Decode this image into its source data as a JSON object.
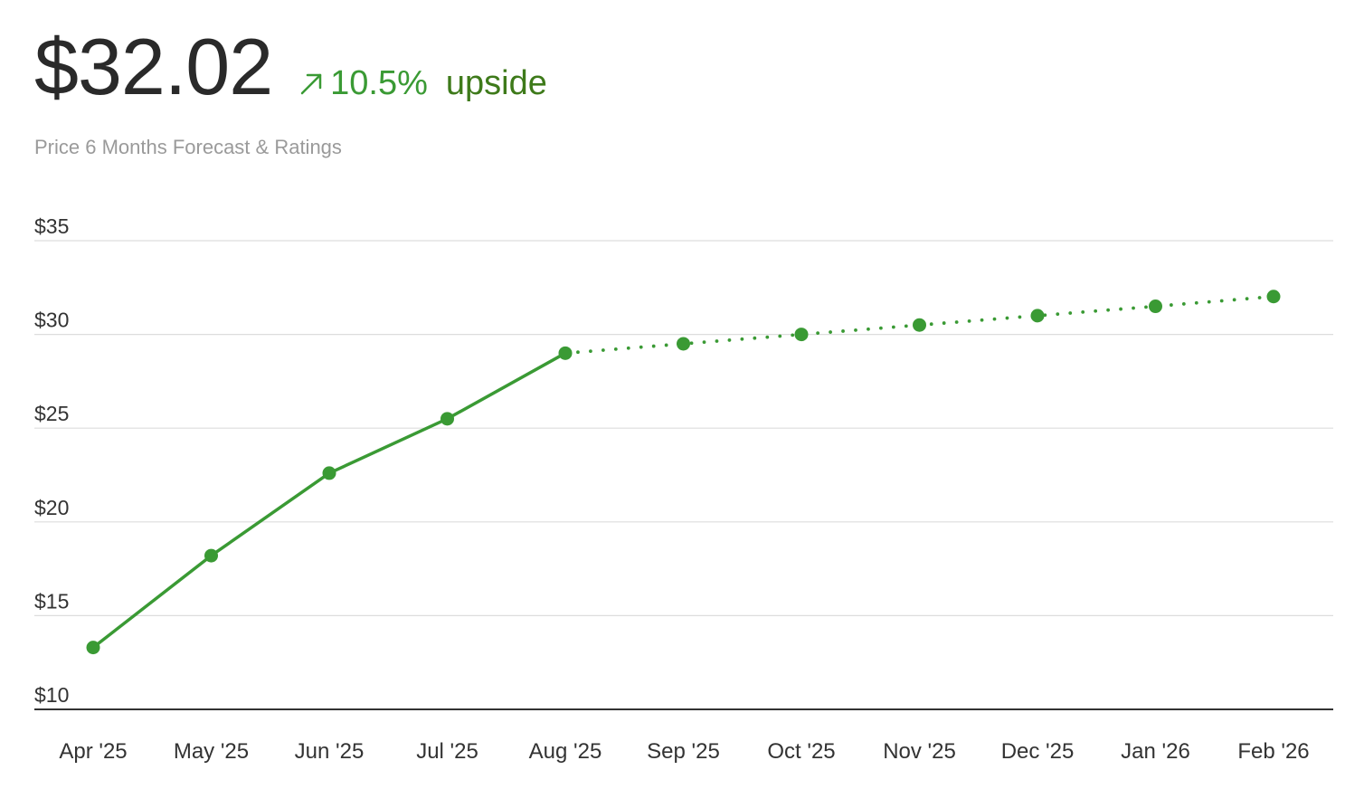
{
  "header": {
    "price": "$32.02",
    "change_pct": "10.5%",
    "change_direction": "upside",
    "subtitle": "Price 6 Months Forecast & Ratings"
  },
  "colors": {
    "line": "#3a9a34",
    "positive_text": "#3a9a34",
    "direction_text": "#3e7a1a",
    "grid": "#dddddd",
    "axis": "#333333"
  },
  "icons": {
    "change": "arrow-up-right-icon"
  },
  "chart_data": {
    "type": "line",
    "x": [
      "Apr '25",
      "May '25",
      "Jun '25",
      "Jul '25",
      "Aug '25",
      "Sep '25",
      "Oct '25",
      "Nov '25",
      "Dec '25",
      "Jan '26",
      "Feb '26"
    ],
    "series": [
      {
        "style": "solid",
        "points": [
          {
            "x": "Apr '25",
            "y": 13.3
          },
          {
            "x": "May '25",
            "y": 18.2
          },
          {
            "x": "Jun '25",
            "y": 22.6
          },
          {
            "x": "Jul '25",
            "y": 25.5
          },
          {
            "x": "Aug '25",
            "y": 29.0
          }
        ]
      },
      {
        "style": "dotted",
        "points": [
          {
            "x": "Aug '25",
            "y": 29.0
          },
          {
            "x": "Sep '25",
            "y": 29.5
          },
          {
            "x": "Oct '25",
            "y": 30.0
          },
          {
            "x": "Nov '25",
            "y": 30.5
          },
          {
            "x": "Dec '25",
            "y": 31.0
          },
          {
            "x": "Jan '26",
            "y": 31.5
          },
          {
            "x": "Feb '26",
            "y": 32.02
          }
        ]
      }
    ],
    "y_ticks": [
      10,
      15,
      20,
      25,
      30,
      35
    ],
    "y_tick_labels": [
      "$10",
      "$15",
      "$20",
      "$25",
      "$30",
      "$35"
    ],
    "ylim": [
      10,
      35
    ],
    "grid": true,
    "legend": "none"
  }
}
